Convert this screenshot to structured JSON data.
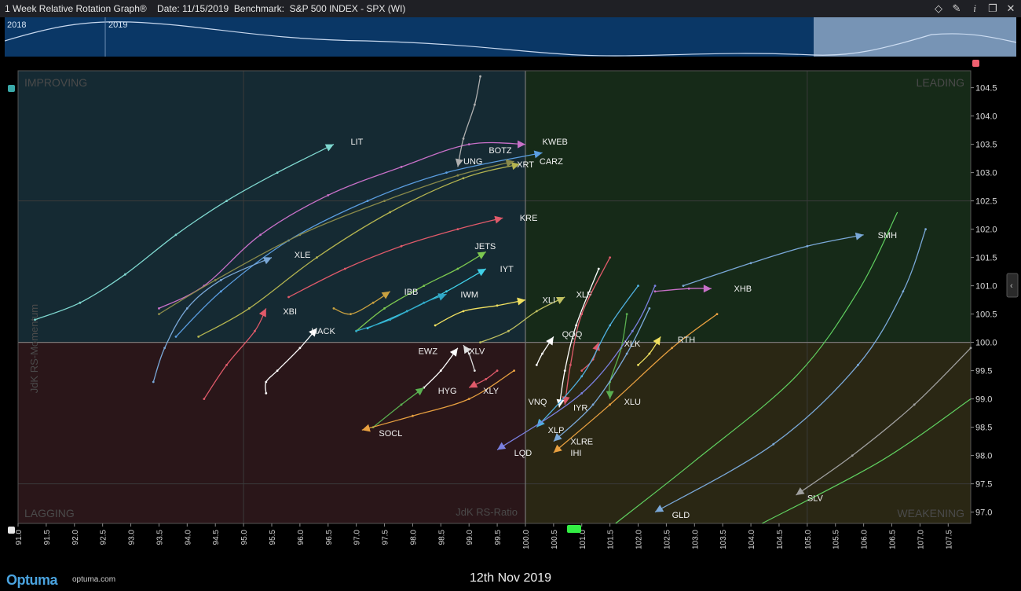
{
  "window": {
    "title": "1 Week Relative Rotation Graph®    Date: 11/15/2019  Benchmark:  S&P 500 INDEX - SPX (WI)",
    "icons": [
      "diamond-icon",
      "pin-icon",
      "info-icon",
      "restore-icon",
      "close-icon"
    ],
    "icon_glyphs": [
      "◇",
      "✎",
      "i",
      "❐",
      "✕"
    ]
  },
  "navigator": {
    "years": [
      "2018",
      "2019"
    ]
  },
  "footer": {
    "logo": "Optuma",
    "site": "optuma.com",
    "date": "12th Nov 2019"
  },
  "colors": {
    "improving": "#152a33",
    "leading": "#162a18",
    "lagging": "#2a1619",
    "weakening": "#2a2714",
    "grid": "#3a3a3a",
    "accent": "#33ee44"
  },
  "chart_data": {
    "type": "scatter",
    "xlabel": "JdK RS-Ratio",
    "ylabel": "JdK RS-Momentum",
    "xlim": [
      91.0,
      107.9
    ],
    "ylim": [
      96.8,
      104.8
    ],
    "x_ticks": [
      "91.0",
      "91.5",
      "92.0",
      "92.5",
      "93.0",
      "93.5",
      "94.0",
      "94.5",
      "95.0",
      "95.5",
      "96.0",
      "96.5",
      "97.0",
      "97.5",
      "98.0",
      "98.5",
      "99.0",
      "99.5",
      "100.0",
      "100.5",
      "101.0",
      "101.5",
      "102.0",
      "102.5",
      "103.0",
      "103.5",
      "104.0",
      "104.5",
      "105.0",
      "105.5",
      "106.0",
      "106.5",
      "107.0",
      "107.5"
    ],
    "y_ticks": [
      "97.0",
      "97.5",
      "98.0",
      "98.5",
      "99.0",
      "99.5",
      "100.0",
      "100.5",
      "101.0",
      "101.5",
      "102.0",
      "102.5",
      "103.0",
      "103.5",
      "104.0",
      "104.5"
    ],
    "quadrants": {
      "improving": "IMPROVING",
      "leading": "LEADING",
      "lagging": "LAGGING",
      "weakening": "WEAKENING"
    },
    "center": [
      100.0,
      100.0
    ],
    "series": [
      {
        "name": "LIT",
        "color": "#7fd8d0",
        "points": [
          [
            91.3,
            100.4
          ],
          [
            92.1,
            100.7
          ],
          [
            92.9,
            101.2
          ],
          [
            93.8,
            101.9
          ],
          [
            94.7,
            102.5
          ],
          [
            95.6,
            103.0
          ],
          [
            96.6,
            103.5
          ]
        ]
      },
      {
        "name": "KWEB",
        "color": "#c870c8",
        "points": [
          [
            93.5,
            100.6
          ],
          [
            94.3,
            101.0
          ],
          [
            95.3,
            101.9
          ],
          [
            96.5,
            102.6
          ],
          [
            97.8,
            103.1
          ],
          [
            99.0,
            103.5
          ],
          [
            100.0,
            103.5
          ]
        ]
      },
      {
        "name": "BOTZ",
        "color": "#5a9de0",
        "points": [
          [
            93.8,
            100.1
          ],
          [
            94.6,
            100.9
          ],
          [
            95.8,
            101.8
          ],
          [
            97.2,
            102.5
          ],
          [
            98.6,
            103.0
          ],
          [
            100.3,
            103.35
          ]
        ]
      },
      {
        "name": "UNG",
        "color": "#b0b0b0",
        "points": [
          [
            99.2,
            104.7
          ],
          [
            99.1,
            104.2
          ],
          [
            98.9,
            103.6
          ],
          [
            98.8,
            103.1
          ]
        ]
      },
      {
        "name": "CARZ",
        "color": "#b4b450",
        "points": [
          [
            94.2,
            100.1
          ],
          [
            95.1,
            100.6
          ],
          [
            96.3,
            101.5
          ],
          [
            97.6,
            102.3
          ],
          [
            98.9,
            102.9
          ],
          [
            99.9,
            103.15
          ]
        ]
      },
      {
        "name": "XRT",
        "color": "#8a8a4a",
        "points": [
          [
            93.5,
            100.5
          ],
          [
            94.5,
            101.1
          ],
          [
            96.0,
            101.9
          ],
          [
            97.5,
            102.5
          ],
          [
            98.8,
            102.95
          ],
          [
            99.8,
            103.2
          ]
        ]
      },
      {
        "name": "KRE",
        "color": "#e05a6a",
        "points": [
          [
            95.8,
            100.8
          ],
          [
            96.8,
            101.3
          ],
          [
            97.8,
            101.7
          ],
          [
            98.8,
            102.0
          ],
          [
            99.6,
            102.2
          ]
        ]
      },
      {
        "name": "XLE",
        "color": "#7aa8d8",
        "points": [
          [
            93.4,
            99.3
          ],
          [
            93.6,
            99.9
          ],
          [
            94.0,
            100.6
          ],
          [
            94.6,
            101.1
          ],
          [
            95.5,
            101.5
          ]
        ]
      },
      {
        "name": "JETS",
        "color": "#7cc850",
        "points": [
          [
            97.0,
            100.2
          ],
          [
            97.5,
            100.6
          ],
          [
            98.2,
            101.0
          ],
          [
            98.8,
            101.3
          ],
          [
            99.3,
            101.6
          ]
        ]
      },
      {
        "name": "IYT",
        "color": "#40d0e8",
        "points": [
          [
            97.2,
            100.25
          ],
          [
            97.9,
            100.55
          ],
          [
            98.6,
            100.9
          ],
          [
            99.3,
            101.3
          ]
        ]
      },
      {
        "name": "IWM",
        "color": "#30a8c8",
        "points": [
          [
            97.0,
            100.2
          ],
          [
            97.6,
            100.4
          ],
          [
            98.2,
            100.7
          ],
          [
            98.6,
            100.85
          ]
        ]
      },
      {
        "name": "IBB",
        "color": "#c8a040",
        "points": [
          [
            96.6,
            100.6
          ],
          [
            96.9,
            100.5
          ],
          [
            97.3,
            100.7
          ],
          [
            97.6,
            100.9
          ]
        ]
      },
      {
        "name": "XLI",
        "color": "#f0e060",
        "points": [
          [
            98.4,
            100.3
          ],
          [
            98.9,
            100.55
          ],
          [
            99.5,
            100.65
          ],
          [
            100.0,
            100.75
          ]
        ]
      },
      {
        "name": "XLF",
        "color": "#c0c060",
        "points": [
          [
            99.2,
            100.0
          ],
          [
            99.7,
            100.2
          ],
          [
            100.2,
            100.55
          ],
          [
            100.7,
            100.8
          ]
        ]
      },
      {
        "name": "XBI",
        "color": "#e05a6a",
        "points": [
          [
            94.3,
            99.0
          ],
          [
            94.7,
            99.6
          ],
          [
            95.2,
            100.2
          ],
          [
            95.4,
            100.6
          ]
        ]
      },
      {
        "name": "HACK",
        "color": "#ffffff",
        "points": [
          [
            95.4,
            99.1
          ],
          [
            95.4,
            99.3
          ],
          [
            95.6,
            99.5
          ],
          [
            96.0,
            99.9
          ],
          [
            96.3,
            100.25
          ]
        ]
      },
      {
        "name": "EWZ",
        "color": "#ffffff",
        "points": [
          [
            98.2,
            99.2
          ],
          [
            98.5,
            99.5
          ],
          [
            98.8,
            99.9
          ]
        ]
      },
      {
        "name": "XLV",
        "color": "#dddddd",
        "points": [
          [
            99.1,
            99.5
          ],
          [
            99.0,
            99.8
          ],
          [
            98.9,
            99.95
          ]
        ]
      },
      {
        "name": "QQQ",
        "color": "#ffffff",
        "points": [
          [
            100.2,
            99.6
          ],
          [
            100.3,
            99.8
          ],
          [
            100.5,
            100.1
          ]
        ]
      },
      {
        "name": "XLK",
        "color": "#e05a6a",
        "points": [
          [
            101.0,
            99.5
          ],
          [
            101.2,
            99.7
          ],
          [
            101.3,
            100.0
          ]
        ]
      },
      {
        "name": "RTH",
        "color": "#f0e060",
        "points": [
          [
            102.0,
            99.6
          ],
          [
            102.2,
            99.8
          ],
          [
            102.4,
            100.1
          ]
        ]
      },
      {
        "name": "XHB",
        "color": "#c870c8",
        "points": [
          [
            102.3,
            100.9
          ],
          [
            102.9,
            100.95
          ],
          [
            103.3,
            100.95
          ]
        ]
      },
      {
        "name": "SMH",
        "color": "#7aa8d8",
        "points": [
          [
            102.8,
            101.0
          ],
          [
            104.0,
            101.4
          ],
          [
            105.0,
            101.7
          ],
          [
            106.0,
            101.9
          ]
        ]
      },
      {
        "name": "HYG",
        "color": "#5ab050",
        "points": [
          [
            97.3,
            98.5
          ],
          [
            97.8,
            98.9
          ],
          [
            98.2,
            99.2
          ]
        ]
      },
      {
        "name": "XLY",
        "color": "#e05a6a",
        "points": [
          [
            99.5,
            99.5
          ],
          [
            99.3,
            99.35
          ],
          [
            99.0,
            99.2
          ]
        ]
      },
      {
        "name": "SOCL",
        "color": "#e8a040",
        "points": [
          [
            99.8,
            99.5
          ],
          [
            99.0,
            99.0
          ],
          [
            98.0,
            98.7
          ],
          [
            97.1,
            98.45
          ]
        ]
      },
      {
        "name": "VNQ",
        "color": "#e05a6a",
        "points": [
          [
            101.5,
            101.5
          ],
          [
            101.0,
            100.5
          ],
          [
            100.8,
            99.6
          ],
          [
            100.7,
            98.9
          ]
        ]
      },
      {
        "name": "IYR",
        "color": "#ffffff",
        "points": [
          [
            101.3,
            101.3
          ],
          [
            100.9,
            100.3
          ],
          [
            100.7,
            99.5
          ],
          [
            100.6,
            98.85
          ]
        ]
      },
      {
        "name": "XLU",
        "color": "#5ab050",
        "points": [
          [
            101.8,
            100.5
          ],
          [
            101.7,
            99.9
          ],
          [
            101.5,
            99.3
          ],
          [
            101.5,
            99.0
          ]
        ]
      },
      {
        "name": "XLP",
        "color": "#50b0e0",
        "points": [
          [
            102.0,
            101.0
          ],
          [
            101.5,
            100.3
          ],
          [
            101.0,
            99.4
          ],
          [
            100.2,
            98.5
          ]
        ]
      },
      {
        "name": "XLRE",
        "color": "#7aa8d8",
        "points": [
          [
            102.2,
            100.6
          ],
          [
            101.8,
            99.8
          ],
          [
            101.2,
            98.9
          ],
          [
            100.5,
            98.25
          ]
        ]
      },
      {
        "name": "LQD",
        "color": "#7a80e0",
        "points": [
          [
            102.3,
            101.0
          ],
          [
            101.9,
            100.2
          ],
          [
            101.0,
            99.1
          ],
          [
            99.5,
            98.1
          ]
        ]
      },
      {
        "name": "IHI",
        "color": "#e8a040",
        "points": [
          [
            103.4,
            100.5
          ],
          [
            102.6,
            99.9
          ],
          [
            101.5,
            98.9
          ],
          [
            100.5,
            98.05
          ]
        ]
      },
      {
        "name": "GLD",
        "color": "#7aa8d8",
        "points": [
          [
            107.1,
            102.0
          ],
          [
            106.7,
            100.9
          ],
          [
            105.9,
            99.6
          ],
          [
            104.4,
            98.2
          ],
          [
            102.3,
            97.0
          ]
        ]
      },
      {
        "name": "SLV",
        "color": "#a0a0a0",
        "points": [
          [
            107.9,
            99.9
          ],
          [
            106.9,
            98.9
          ],
          [
            105.8,
            98.0
          ],
          [
            104.8,
            97.3
          ]
        ]
      }
    ],
    "extra_tracks": [
      {
        "name": "green-track-1",
        "color": "#60d060",
        "points": [
          [
            106.6,
            102.3
          ],
          [
            105.9,
            100.9
          ],
          [
            104.8,
            99.4
          ],
          [
            103.0,
            97.9
          ],
          [
            101.6,
            96.8
          ]
        ]
      },
      {
        "name": "green-track-2",
        "color": "#60d060",
        "points": [
          [
            107.9,
            99.0
          ],
          [
            106.3,
            97.9
          ],
          [
            104.2,
            96.8
          ]
        ]
      }
    ],
    "labels": [
      {
        "name": "LIT",
        "text": "LIT",
        "x": 96.9,
        "y": 103.55
      },
      {
        "name": "KWEB",
        "text": "KWEB",
        "x": 100.3,
        "y": 103.55
      },
      {
        "name": "BOTZ",
        "text": "BOTZ",
        "x": 99.35,
        "y": 103.4
      },
      {
        "name": "UNG",
        "text": "UNG",
        "x": 98.9,
        "y": 103.2
      },
      {
        "name": "XRT",
        "text": "XRT",
        "x": 99.85,
        "y": 103.15
      },
      {
        "name": "CARZ",
        "text": "CARZ",
        "x": 100.25,
        "y": 103.2
      },
      {
        "name": "KRE",
        "text": "KRE",
        "x": 99.9,
        "y": 102.2
      },
      {
        "name": "XLE",
        "text": "XLE",
        "x": 95.9,
        "y": 101.55
      },
      {
        "name": "JETS",
        "text": "JETS",
        "x": 99.1,
        "y": 101.7
      },
      {
        "name": "IYT",
        "text": "IYT",
        "x": 99.55,
        "y": 101.3
      },
      {
        "name": "IWM",
        "text": "IWM",
        "x": 98.85,
        "y": 100.85
      },
      {
        "name": "IBB",
        "text": "IBB",
        "x": 97.85,
        "y": 100.9
      },
      {
        "name": "XLI",
        "text": "XLI",
        "x": 100.3,
        "y": 100.75
      },
      {
        "name": "XLF",
        "text": "XLF",
        "x": 100.9,
        "y": 100.85
      },
      {
        "name": "XBI",
        "text": "XBI",
        "x": 95.7,
        "y": 100.55
      },
      {
        "name": "HACK",
        "text": "HACK",
        "x": 96.2,
        "y": 100.2
      },
      {
        "name": "EWZ",
        "text": "EWZ",
        "x": 98.1,
        "y": 99.85
      },
      {
        "name": "XLV",
        "text": "XLV",
        "x": 99.0,
        "y": 99.85
      },
      {
        "name": "QQQ",
        "text": "QQQ",
        "x": 100.65,
        "y": 100.15
      },
      {
        "name": "XLK",
        "text": "XLK",
        "x": 101.75,
        "y": 99.98
      },
      {
        "name": "RTH",
        "text": "RTH",
        "x": 102.7,
        "y": 100.05
      },
      {
        "name": "XHB",
        "text": "XHB",
        "x": 103.7,
        "y": 100.95
      },
      {
        "name": "SMH",
        "text": "SMH",
        "x": 106.25,
        "y": 101.9
      },
      {
        "name": "HYG",
        "text": "HYG",
        "x": 98.45,
        "y": 99.15
      },
      {
        "name": "XLY",
        "text": "XLY",
        "x": 99.25,
        "y": 99.15
      },
      {
        "name": "SOCL",
        "text": "SOCL",
        "x": 97.4,
        "y": 98.4
      },
      {
        "name": "VNQ",
        "text": "VNQ",
        "x": 100.05,
        "y": 98.95
      },
      {
        "name": "IYR",
        "text": "IYR",
        "x": 100.85,
        "y": 98.85
      },
      {
        "name": "XLU",
        "text": "XLU",
        "x": 101.75,
        "y": 98.95
      },
      {
        "name": "XLP",
        "text": "XLP",
        "x": 100.4,
        "y": 98.45
      },
      {
        "name": "XLRE",
        "text": "XLRE",
        "x": 100.8,
        "y": 98.25
      },
      {
        "name": "LQD",
        "text": "LQD",
        "x": 99.8,
        "y": 98.05
      },
      {
        "name": "IHI",
        "text": "IHI",
        "x": 100.8,
        "y": 98.05
      },
      {
        "name": "GLD",
        "text": "GLD",
        "x": 102.6,
        "y": 96.95
      },
      {
        "name": "SLV",
        "text": "SLV",
        "x": 105.0,
        "y": 97.25
      }
    ],
    "grid": true
  }
}
